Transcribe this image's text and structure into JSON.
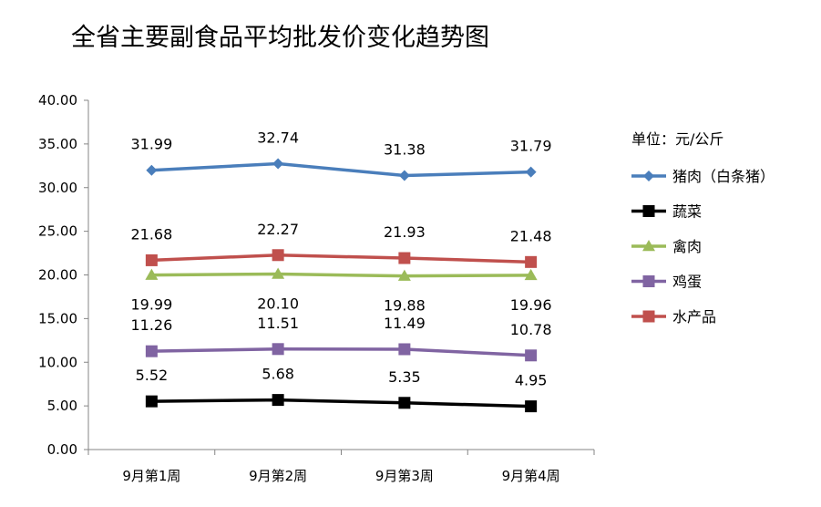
{
  "chart_data": {
    "type": "line",
    "title": "全省主要副食品平均批发价变化趋势图",
    "unit_label": "单位：元/公斤",
    "categories": [
      "9月第1周",
      "9月第2周",
      "9月第3周",
      "9月第4周"
    ],
    "y_ticks": [
      "0.00",
      "5.00",
      "10.00",
      "15.00",
      "20.00",
      "25.00",
      "30.00",
      "35.00",
      "40.00"
    ],
    "ylim": [
      0,
      40
    ],
    "grid": false,
    "legend_position": "right",
    "series": [
      {
        "name": "猪肉（白条猪）",
        "color": "#4a7ebb",
        "marker": "diamond",
        "label_pos": "above",
        "values": [
          31.99,
          32.74,
          31.38,
          31.79
        ],
        "labels": [
          "31.99",
          "32.74",
          "31.38",
          "31.79"
        ]
      },
      {
        "name": "蔬菜",
        "color": "#000000",
        "marker": "square",
        "label_pos": "above",
        "values": [
          5.52,
          5.68,
          5.35,
          4.95
        ],
        "labels": [
          "5.52",
          "5.68",
          "5.35",
          "4.95"
        ]
      },
      {
        "name": "禽肉",
        "color": "#9bbb59",
        "marker": "triangle",
        "label_pos": "below",
        "values": [
          19.99,
          20.1,
          19.88,
          19.96
        ],
        "labels": [
          "19.99",
          "20.10",
          "19.88",
          "19.96"
        ]
      },
      {
        "name": "鸡蛋",
        "color": "#8064a2",
        "marker": "square",
        "label_pos": "above",
        "values": [
          11.26,
          11.51,
          11.49,
          10.78
        ],
        "labels": [
          "11.26",
          "11.51",
          "11.49",
          "10.78"
        ]
      },
      {
        "name": "水产品",
        "color": "#c0504d",
        "marker": "square",
        "label_pos": "above",
        "values": [
          21.68,
          22.27,
          21.93,
          21.48
        ],
        "labels": [
          "21.68",
          "22.27",
          "21.93",
          "21.48"
        ]
      }
    ]
  }
}
